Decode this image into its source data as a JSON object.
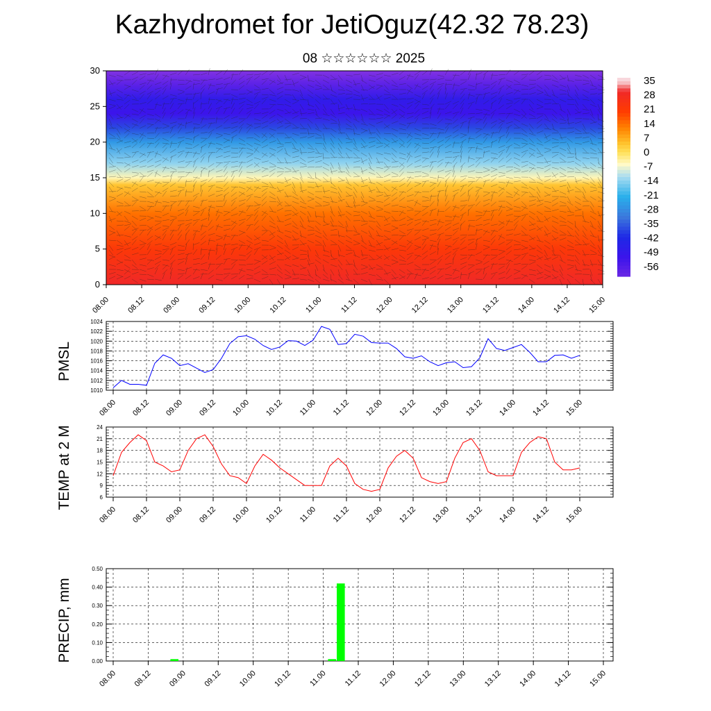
{
  "title": "Kazhydromet for JetiOguz(42.32 78.23)",
  "subtitle": "08 ☆☆☆☆☆☆ 2025",
  "time_labels": [
    "08.00",
    "08.12",
    "09.00",
    "09.12",
    "10.00",
    "10.12",
    "11.00",
    "11.12",
    "12.00",
    "12.12",
    "13.00",
    "13.12",
    "14.00",
    "14.12",
    "15.00"
  ],
  "colors": {
    "pmsl_line": "#0000ff",
    "temp_line": "#ff0000",
    "precip_bar": "#00ff00",
    "frame": "#000000"
  },
  "chart_data": [
    {
      "type": "heatmap",
      "title": "",
      "xlabel": "",
      "ylabel": "",
      "ylim": [
        0,
        30
      ],
      "y_ticks": [
        0,
        5,
        10,
        15,
        20,
        25,
        30
      ],
      "colorbar": {
        "labels": [
          "35",
          "28",
          "21",
          "14",
          "7",
          "0",
          "-7",
          "-14",
          "-21",
          "-28",
          "-35",
          "-42",
          "-49",
          "-56"
        ],
        "placement": "right"
      },
      "profile": {
        "heights": [
          0,
          5,
          10,
          14,
          15,
          17,
          20,
          22,
          24,
          26,
          28,
          30
        ],
        "values": [
          30,
          22,
          14,
          4,
          -5,
          -14,
          -26,
          -38,
          -52,
          -48,
          -58,
          -66
        ]
      },
      "overlay": "wind barbs"
    },
    {
      "type": "line",
      "ylabel": "PMSL",
      "ylim": [
        1010,
        1024
      ],
      "y_ticks": [
        "1010",
        "1012",
        "1014",
        "1016",
        "1018",
        "1020",
        "1022",
        "1024"
      ],
      "grid": true,
      "series": [
        {
          "values": [
            1010.5,
            1012.0,
            1011.2,
            1011.2,
            1011.0,
            1015.5,
            1017.2,
            1016.5,
            1015.0,
            1015.4,
            1014.5,
            1013.6,
            1014.2,
            1016.5,
            1019.5,
            1020.9,
            1021.1,
            1020.4,
            1019.1,
            1018.3,
            1018.8,
            1020.1,
            1020.0,
            1019.1,
            1020.2,
            1023.0,
            1022.4,
            1019.3,
            1019.5,
            1021.4,
            1021.0,
            1019.7,
            1019.6,
            1019.6,
            1018.5,
            1016.8,
            1016.5,
            1017.0,
            1015.8,
            1015.0,
            1015.6,
            1015.8,
            1014.6,
            1014.8,
            1016.6,
            1020.5,
            1018.5,
            1018.1,
            1018.7,
            1019.3,
            1017.7,
            1015.8,
            1015.8,
            1017.1,
            1017.2,
            1016.5,
            1017.1
          ]
        }
      ]
    },
    {
      "type": "line",
      "ylabel": "TEMP at 2 M",
      "ylim": [
        6,
        24
      ],
      "y_ticks": [
        "6",
        "9",
        "12",
        "15",
        "18",
        "21",
        "24"
      ],
      "grid": true,
      "series": [
        {
          "values": [
            11.5,
            17.5,
            20.0,
            22.0,
            20.5,
            15.0,
            14.0,
            12.5,
            13.0,
            18.0,
            21.0,
            22.0,
            19.0,
            14.5,
            11.5,
            11.0,
            9.5,
            14.0,
            17.0,
            15.5,
            13.5,
            12.0,
            10.5,
            9.0,
            9.0,
            9.0,
            14.0,
            16.0,
            14.0,
            9.5,
            8.0,
            7.5,
            8.0,
            13.5,
            16.5,
            18.0,
            16.0,
            11.0,
            10.0,
            9.5,
            10.0,
            16.0,
            20.0,
            21.0,
            18.0,
            12.5,
            11.5,
            11.5,
            11.5,
            17.5,
            20.0,
            21.5,
            21.0,
            15.0,
            13.0,
            13.0,
            13.5
          ]
        }
      ]
    },
    {
      "type": "bar",
      "ylabel": "PRECIP, mm",
      "ylim": [
        0,
        0.5
      ],
      "y_ticks": [
        "0.00",
        "0.10",
        "0.20",
        "0.30",
        "0.40",
        "0.50"
      ],
      "grid": true,
      "series": [
        {
          "values": [
            0,
            0,
            0,
            0,
            0,
            0,
            0,
            0.01,
            0,
            0,
            0,
            0,
            0,
            0,
            0,
            0,
            0,
            0,
            0,
            0,
            0,
            0,
            0,
            0,
            0,
            0.01,
            0.42,
            0,
            0,
            0,
            0,
            0,
            0,
            0,
            0,
            0,
            0,
            0,
            0,
            0,
            0,
            0,
            0,
            0,
            0,
            0,
            0,
            0,
            0,
            0,
            0,
            0,
            0,
            0,
            0,
            0,
            0
          ]
        }
      ]
    }
  ]
}
